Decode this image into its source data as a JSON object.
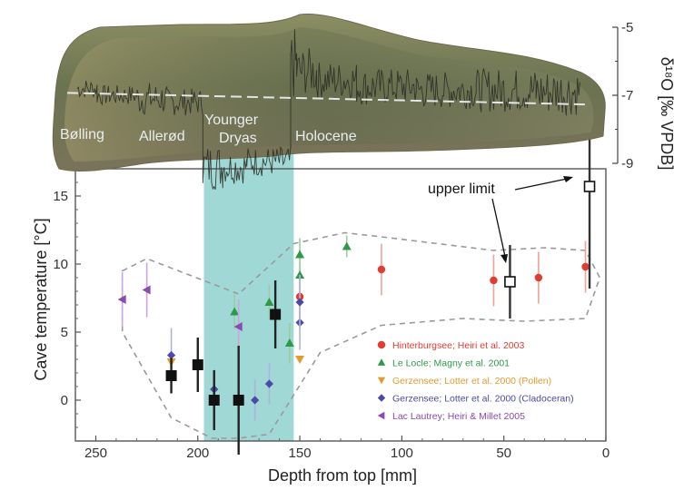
{
  "chart_data": [
    {
      "type": "scatter",
      "title": "",
      "xlabel": "Depth from top [mm]",
      "ylabel": "Cave temperature [°C]",
      "xlim": [
        260,
        0
      ],
      "ylim": [
        -3,
        17
      ],
      "x_ticks": [
        "250",
        "200",
        "150",
        "100",
        "50",
        "0"
      ],
      "y_ticks": [
        "0",
        "5",
        "10",
        "15"
      ],
      "highlight_band_x": [
        197,
        153
      ],
      "highlight_color": "#8fd1cf",
      "envelope_polygon": [
        [
          237,
          9.5
        ],
        [
          225,
          10.4
        ],
        [
          180,
          7.8
        ],
        [
          153,
          11.5
        ],
        [
          128,
          12.3
        ],
        [
          110,
          12.0
        ],
        [
          55,
          11.0
        ],
        [
          30,
          11.2
        ],
        [
          10,
          11.0
        ],
        [
          3,
          9.0
        ],
        [
          10,
          6.0
        ],
        [
          40,
          5.8
        ],
        [
          70,
          6.0
        ],
        [
          110,
          5.5
        ],
        [
          140,
          3.5
        ],
        [
          165,
          -2.5
        ],
        [
          180,
          -2.8
        ],
        [
          193,
          -2.8
        ],
        [
          213,
          -1.3
        ],
        [
          237,
          5.0
        ]
      ],
      "series": [
        {
          "name": "Hinterburgsee; Heiri et al. 2003",
          "marker": "circle",
          "color": "#e03c31",
          "points": [
            {
              "x": 150,
              "y": 7.6,
              "err": 1.8
            },
            {
              "x": 110,
              "y": 9.6,
              "err": 1.9
            },
            {
              "x": 55,
              "y": 8.8,
              "err": 1.9
            },
            {
              "x": 33,
              "y": 9.0,
              "err": 1.9
            },
            {
              "x": 10,
              "y": 9.8,
              "err": 1.9
            }
          ]
        },
        {
          "name": "Le Locle; Magny et al. 2001",
          "marker": "triangle-up",
          "color": "#2e9a47",
          "points": [
            {
              "x": 182,
              "y": 6.5,
              "err": 1.3
            },
            {
              "x": 165,
              "y": 7.2,
              "err": 1.3
            },
            {
              "x": 155,
              "y": 4.2,
              "err": 1.5
            },
            {
              "x": 150,
              "y": 10.7,
              "err": 1.2
            },
            {
              "x": 150,
              "y": 9.2,
              "err": 1.0
            },
            {
              "x": 127,
              "y": 11.3,
              "err": 0.8
            }
          ]
        },
        {
          "name": "Gerzensee; Lotter et al. 2000 (Pollen)",
          "marker": "triangle-down",
          "color": "#e49a2e",
          "points": [
            {
              "x": 213,
              "y": 2.8,
              "err": 0
            },
            {
              "x": 150,
              "y": 3.0,
              "err": 0
            }
          ]
        },
        {
          "name": "Gerzensee; Lotter et al. 2000 (Cladoceran)",
          "marker": "diamond",
          "color": "#4a4aa8",
          "points": [
            {
              "x": 213,
              "y": 3.3,
              "err": 2.0
            },
            {
              "x": 192,
              "y": 0.8,
              "err": 1.5
            },
            {
              "x": 172,
              "y": 0.0,
              "err": 1.5
            },
            {
              "x": 165,
              "y": 1.2,
              "err": 1.5
            },
            {
              "x": 150,
              "y": 5.7,
              "err": 2.0
            },
            {
              "x": 150,
              "y": 7.2,
              "err": 2.0
            }
          ]
        },
        {
          "name": "Lac Lautrey; Heiri & Millet 2005",
          "marker": "triangle-left",
          "color": "#8a4ab0",
          "points": [
            {
              "x": 237,
              "y": 7.4,
              "err": 2.0
            },
            {
              "x": 225,
              "y": 8.1,
              "err": 2.0
            },
            {
              "x": 180,
              "y": 5.4,
              "err": 2.0
            }
          ]
        },
        {
          "name": "",
          "marker": "square",
          "color": "#111111",
          "points": [
            {
              "x": 213,
              "y": 1.8,
              "err": 1.3
            },
            {
              "x": 200,
              "y": 2.6,
              "err": 2.0
            },
            {
              "x": 192,
              "y": 0.0,
              "err": 2.2
            },
            {
              "x": 180,
              "y": 0.0,
              "err": 4.0
            },
            {
              "x": 162,
              "y": 6.3,
              "err": 2.5
            }
          ]
        },
        {
          "name": "",
          "marker": "open-square",
          "color": "#111111",
          "points": [
            {
              "x": 47,
              "y": 8.7,
              "err": 2.7
            },
            {
              "x": 8,
              "y": 15.7,
              "err": 7.5
            }
          ]
        }
      ],
      "annotations": [
        {
          "text": "upper limit"
        }
      ]
    },
    {
      "type": "line",
      "ylabel": "δ¹⁸O [‰ VPDB]",
      "ylim": [
        -9,
        -5
      ],
      "y_ticks": [
        "-5",
        "-7",
        "-9"
      ],
      "periods": [
        "Bølling",
        "Allerød",
        "Younger",
        "Dryas",
        "Holocene"
      ],
      "x_pad_mm": [
        270,
        -5
      ],
      "isotope_ylim": [
        -10.2,
        -4.6
      ],
      "isotope_baseline": -7.0,
      "dashed_trend": [
        [
          265,
          -6.93
        ],
        [
          5,
          -7.27
        ]
      ],
      "isotope_ranges": [
        [
          260,
          250,
          -7.1,
          -6.5
        ],
        [
          250,
          230,
          -7.3,
          -6.7
        ],
        [
          230,
          215,
          -7.6,
          -6.6
        ],
        [
          215,
          197,
          -7.6,
          -6.8
        ],
        [
          197,
          187,
          -9.8,
          -8.4
        ],
        [
          187,
          175,
          -9.6,
          -8.6
        ],
        [
          175,
          153,
          -9.4,
          -8.5
        ],
        [
          153,
          150,
          -7.2,
          -5.0
        ],
        [
          150,
          140,
          -7.0,
          -5.6
        ],
        [
          140,
          120,
          -7.1,
          -6.0
        ],
        [
          120,
          90,
          -7.3,
          -6.2
        ],
        [
          90,
          60,
          -7.4,
          -6.3
        ],
        [
          60,
          30,
          -7.5,
          -6.2
        ],
        [
          30,
          8,
          -7.6,
          -6.2
        ]
      ]
    }
  ]
}
